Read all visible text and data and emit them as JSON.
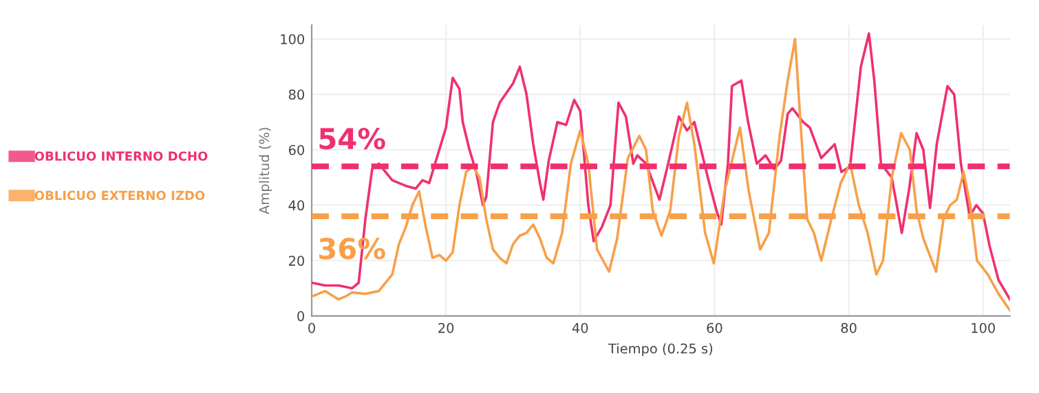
{
  "chart_data": {
    "type": "line",
    "xlabel": "Tiempo (0.25 s)",
    "ylabel": "Amplitud (%)",
    "xlim": [
      0,
      104
    ],
    "ylim": [
      0,
      105
    ],
    "xticks": [
      0,
      20,
      40,
      60,
      80,
      100
    ],
    "yticks": [
      0,
      20,
      40,
      60,
      80,
      100
    ],
    "grid": true,
    "legend": "left",
    "marker": "none",
    "line_style": "solid",
    "series": [
      {
        "name": "OBLICUO INTERNO DCHO",
        "color": "#f0306e",
        "x": [
          0,
          2,
          4,
          6,
          7,
          8,
          9,
          10,
          11,
          12,
          14,
          15.5,
          16.5,
          17.5,
          19,
          20,
          21,
          22,
          22.5,
          23.5,
          24.5,
          25.5,
          26,
          27,
          28,
          30,
          31,
          32,
          33,
          34,
          34.5,
          35.3,
          36.6,
          37.9,
          39.1,
          40,
          40.5,
          41.2,
          42,
          43.2,
          44.5,
          45.7,
          46.8,
          47.9,
          48.5,
          49.8,
          51.8,
          53.1,
          54.7,
          55.9,
          57,
          59,
          60.3,
          61,
          62,
          62.6,
          64,
          65,
          66.3,
          67.6,
          68.9,
          69.9,
          70.9,
          71.6,
          73.2,
          74.2,
          75.9,
          77.9,
          78.9,
          80.2,
          81.8,
          83,
          83.8,
          84.8,
          86.4,
          87.9,
          89,
          90.1,
          91.1,
          92.1,
          93.1,
          94.7,
          95.7,
          96.7,
          98,
          99,
          100,
          101,
          102.3,
          104
        ],
        "values": [
          12,
          11,
          11,
          10,
          12,
          35,
          53,
          55,
          52,
          49,
          47,
          46,
          49,
          48,
          60,
          68,
          86,
          82,
          70,
          60,
          52,
          40,
          43,
          70,
          77,
          84,
          90,
          80,
          62,
          48,
          42,
          56,
          70,
          69,
          78,
          74,
          60,
          40,
          27,
          32,
          40,
          77,
          72,
          55,
          58,
          55,
          42,
          55,
          72,
          67,
          70,
          50,
          38,
          33,
          55,
          83,
          85,
          70,
          55,
          58,
          53,
          56,
          73,
          75,
          70,
          68,
          57,
          62,
          52,
          54,
          90,
          102,
          85,
          55,
          50,
          30,
          46,
          66,
          60,
          39,
          62,
          83,
          80,
          55,
          36,
          40,
          37,
          25,
          13,
          6
        ]
      },
      {
        "name": "OBLICUO EXTERNO IZDO",
        "color": "#f7a04a",
        "x": [
          0,
          2,
          4,
          5,
          6,
          8,
          10,
          12,
          13,
          14,
          15,
          16,
          17,
          18,
          19,
          20,
          21,
          22,
          23,
          24,
          25,
          26,
          27,
          28,
          29,
          30,
          31,
          32,
          33,
          34,
          35,
          36,
          37.3,
          38.6,
          40,
          41.2,
          42.5,
          44.3,
          45.5,
          47.1,
          48.8,
          49.8,
          50.8,
          52.1,
          53.4,
          54.7,
          55.9,
          57,
          58.6,
          59.9,
          61.5,
          63.8,
          65.1,
          66.8,
          68.1,
          69.7,
          70.9,
          72,
          72.8,
          73.8,
          74.8,
          75.9,
          77.4,
          78.8,
          80.2,
          81.5,
          82.8,
          84.1,
          85.1,
          86.4,
          87.8,
          89.1,
          90.1,
          91.1,
          93,
          94.1,
          95.1,
          96.1,
          97.1,
          98.1,
          99.1,
          100.7,
          102.3,
          104
        ],
        "values": [
          7,
          9,
          6,
          7,
          8.5,
          8,
          9,
          15,
          26,
          32,
          40,
          45,
          32,
          21,
          22,
          20,
          23,
          40,
          52,
          54,
          50,
          35,
          24,
          21,
          19,
          26,
          29,
          30,
          33,
          28,
          21,
          19,
          30,
          55,
          67,
          55,
          24,
          16,
          28,
          57,
          65,
          60,
          38,
          29,
          38,
          65,
          77,
          62,
          30,
          19,
          45,
          68,
          45,
          24,
          30,
          65,
          85,
          100,
          70,
          35,
          30,
          20,
          35,
          48,
          55,
          40,
          30,
          15,
          20,
          50,
          66,
          60,
          38,
          28,
          16,
          35,
          40,
          42,
          52,
          40,
          20,
          15,
          8,
          2
        ]
      }
    ],
    "ref_lines": [
      {
        "axis": "y",
        "value": 54,
        "label": "54%",
        "color": "#f0306e",
        "line_style": "dashed"
      },
      {
        "axis": "y",
        "value": 36,
        "label": "36%",
        "color": "#f7a04a",
        "line_style": "dashed"
      }
    ]
  }
}
